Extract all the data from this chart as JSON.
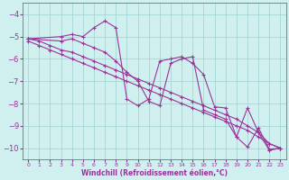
{
  "background_color": "#d0f0f0",
  "line_color": "#993399",
  "grid_color": "#a0d0d0",
  "axis_label_color": "#993399",
  "tick_color": "#993399",
  "xlabel": "Windchill (Refroidissement éolien,°C)",
  "xlim": [
    -0.5,
    23.5
  ],
  "ylim": [
    -10.5,
    -3.5
  ],
  "yticks": [
    -10,
    -9,
    -8,
    -7,
    -6,
    -5,
    -4
  ],
  "xticks": [
    0,
    1,
    2,
    3,
    4,
    5,
    6,
    7,
    8,
    9,
    10,
    11,
    12,
    13,
    14,
    15,
    16,
    17,
    18,
    19,
    20,
    21,
    22,
    23
  ],
  "series": [
    {
      "x": [
        0,
        1,
        2,
        3,
        4,
        5,
        6,
        7,
        8,
        9,
        10,
        11,
        12,
        13,
        14,
        15,
        16,
        17,
        18,
        19,
        20,
        21,
        22,
        23
      ],
      "y": [
        -5.1,
        -5.2,
        -5.4,
        -5.6,
        -5.7,
        -5.9,
        -6.1,
        -6.3,
        -6.5,
        -6.7,
        -6.9,
        -7.1,
        -7.3,
        -7.5,
        -7.7,
        -7.9,
        -8.1,
        -8.3,
        -8.5,
        -8.7,
        -9.0,
        -9.3,
        -9.8,
        -10.0
      ]
    },
    {
      "x": [
        0,
        1,
        2,
        3,
        4,
        5,
        6,
        7,
        8,
        9,
        10,
        11,
        12,
        13,
        14,
        15,
        16,
        17,
        18,
        19,
        20,
        21,
        22,
        23
      ],
      "y": [
        -5.2,
        -5.4,
        -5.6,
        -5.8,
        -6.0,
        -6.2,
        -6.4,
        -6.6,
        -6.8,
        -7.0,
        -7.2,
        -7.4,
        -7.6,
        -7.8,
        -8.0,
        -8.2,
        -8.4,
        -8.6,
        -8.8,
        -9.0,
        -9.2,
        -9.5,
        -9.8,
        -10.0
      ]
    },
    {
      "x": [
        0,
        3,
        4,
        5,
        6,
        7,
        8,
        9,
        10,
        11,
        12,
        13,
        14,
        15,
        16,
        17,
        18,
        19,
        20,
        21,
        22,
        23
      ],
      "y": [
        -5.1,
        -5.0,
        -4.9,
        -5.0,
        -4.6,
        -4.3,
        -4.6,
        -7.8,
        -8.1,
        -7.8,
        -6.1,
        -6.0,
        -5.9,
        -6.2,
        -6.7,
        -8.15,
        -8.2,
        -9.5,
        -9.95,
        -9.1,
        -10.05,
        -10.0
      ]
    },
    {
      "x": [
        0,
        3,
        4,
        5,
        6,
        7,
        8,
        9,
        10,
        11,
        12,
        13,
        14,
        15,
        16,
        17,
        18,
        19,
        20,
        21,
        22,
        23
      ],
      "y": [
        -5.1,
        -5.2,
        -5.1,
        -5.3,
        -5.5,
        -5.7,
        -6.1,
        -6.6,
        -7.0,
        -7.9,
        -8.1,
        -6.2,
        -6.0,
        -5.9,
        -8.3,
        -8.5,
        -8.7,
        -9.5,
        -8.2,
        -9.3,
        -10.1,
        -10.0
      ]
    }
  ]
}
